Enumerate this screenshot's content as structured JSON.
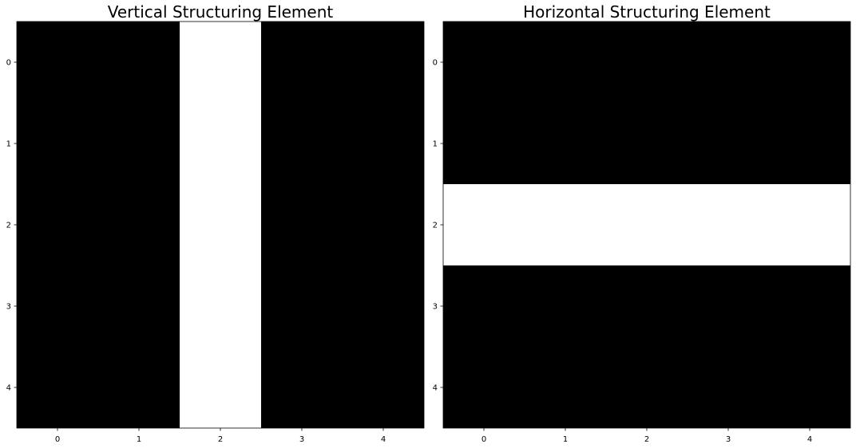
{
  "chart_data": [
    {
      "type": "heatmap",
      "title": "Vertical Structuring Element",
      "x_ticks": [
        0,
        1,
        2,
        3,
        4
      ],
      "y_ticks": [
        0,
        1,
        2,
        3,
        4
      ],
      "xlim": [
        -0.5,
        4.5
      ],
      "ylim": [
        4.5,
        -0.5
      ],
      "grid": false,
      "colormap": [
        "#000000",
        "#ffffff"
      ],
      "matrix": [
        [
          0,
          0,
          1,
          0,
          0
        ],
        [
          0,
          0,
          1,
          0,
          0
        ],
        [
          0,
          0,
          1,
          0,
          0
        ],
        [
          0,
          0,
          1,
          0,
          0
        ],
        [
          0,
          0,
          1,
          0,
          0
        ]
      ]
    },
    {
      "type": "heatmap",
      "title": "Horizontal Structuring Element",
      "x_ticks": [
        0,
        1,
        2,
        3,
        4
      ],
      "y_ticks": [
        0,
        1,
        2,
        3,
        4
      ],
      "xlim": [
        -0.5,
        4.5
      ],
      "ylim": [
        4.5,
        -0.5
      ],
      "grid": false,
      "colormap": [
        "#000000",
        "#ffffff"
      ],
      "matrix": [
        [
          0,
          0,
          0,
          0,
          0
        ],
        [
          0,
          0,
          0,
          0,
          0
        ],
        [
          1,
          1,
          1,
          1,
          1
        ],
        [
          0,
          0,
          0,
          0,
          0
        ],
        [
          0,
          0,
          0,
          0,
          0
        ]
      ]
    }
  ]
}
